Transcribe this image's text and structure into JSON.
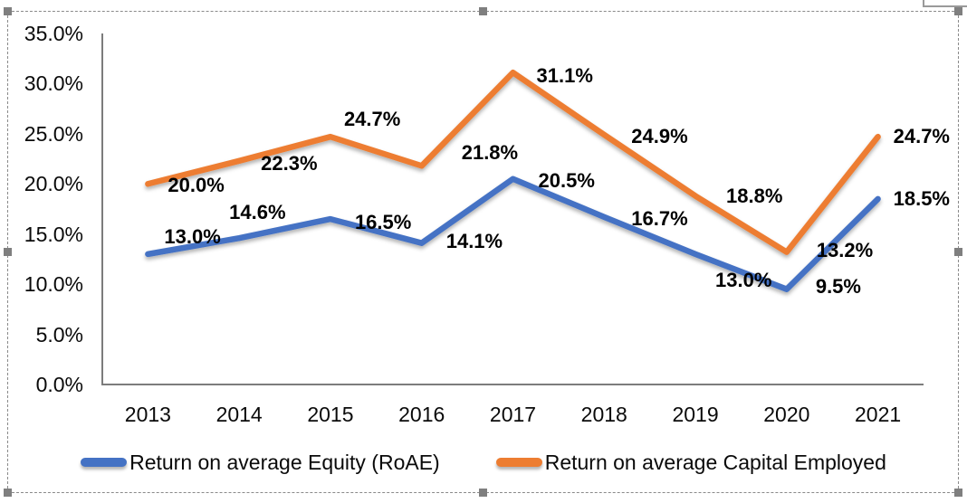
{
  "selection": {
    "handles": [
      "nw",
      "n",
      "ne",
      "w",
      "e",
      "sw",
      "s",
      "se"
    ]
  },
  "colors": {
    "series_blue": "#4472C4",
    "series_orange": "#ED7D31",
    "axis_line": "#7c7c7c",
    "marquee_gray": "#8a8a8a",
    "handle_gray": "#7f7f7f"
  },
  "chart_data": {
    "type": "line",
    "title": "",
    "xlabel": "",
    "ylabel": "",
    "x": [
      "2013",
      "2014",
      "2015",
      "2016",
      "2017",
      "2018",
      "2019",
      "2020",
      "2021"
    ],
    "ylim": [
      0,
      35
    ],
    "ytick_labels": [
      "35.0%",
      "30.0%",
      "25.0%",
      "20.0%",
      "15.0%",
      "10.0%",
      "5.0%",
      "0.0%"
    ],
    "ytick_values": [
      35,
      30,
      25,
      20,
      15,
      10,
      5,
      0
    ],
    "grid": false,
    "legend_position": "bottom",
    "series": [
      {
        "name": "Return on average Equity (RoAE)",
        "color": "#4472C4",
        "values": [
          13.0,
          14.6,
          16.5,
          14.1,
          20.5,
          16.7,
          13.0,
          9.5,
          18.5
        ],
        "labels": [
          "13.0%",
          "14.6%",
          "16.5%",
          "14.1%",
          "20.5%",
          "16.7%",
          "13.0%",
          "9.5%",
          "18.5%"
        ],
        "label_dx": [
          18,
          -11,
          27,
          27,
          28,
          30,
          22,
          32,
          17
        ],
        "label_dy": [
          -19,
          -28,
          4,
          -2,
          2,
          2,
          29,
          -3,
          0
        ]
      },
      {
        "name": "Return on average Capital Employed",
        "color": "#ED7D31",
        "values": [
          20.0,
          22.3,
          24.7,
          21.8,
          31.1,
          24.9,
          18.8,
          13.2,
          24.7
        ],
        "labels": [
          "20.0%",
          "22.3%",
          "24.7%",
          "21.8%",
          "31.1%",
          "24.9%",
          "18.8%",
          "13.2%",
          "24.7%"
        ],
        "label_dx": [
          22,
          24,
          15,
          44,
          26,
          30,
          34,
          33,
          17
        ],
        "label_dy": [
          2,
          3,
          -19,
          -14,
          4,
          2,
          0,
          -2,
          0
        ]
      }
    ]
  }
}
